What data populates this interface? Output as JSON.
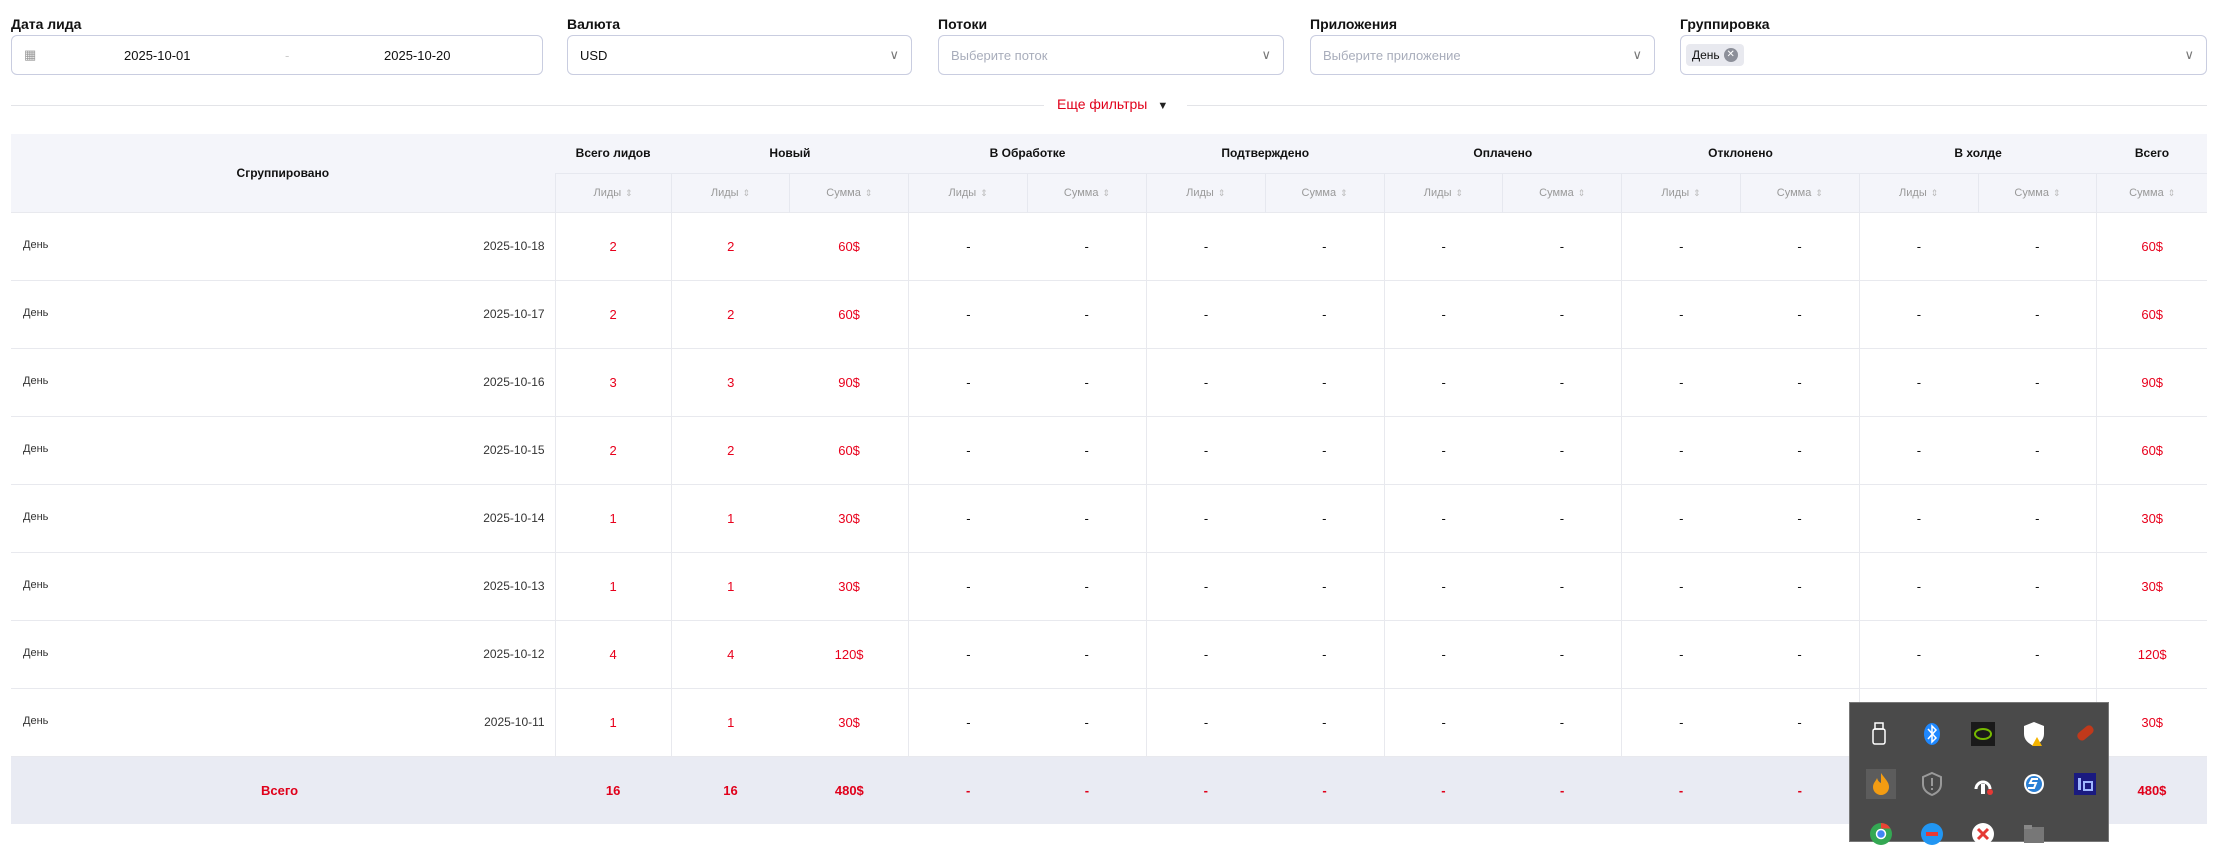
{
  "filters": {
    "date": {
      "label": "Дата лида",
      "from": "2025-10-01",
      "sep": "-",
      "to": "2025-10-20"
    },
    "currency": {
      "label": "Валюта",
      "value": "USD"
    },
    "flows": {
      "label": "Потоки",
      "placeholder": "Выберите поток"
    },
    "apps": {
      "label": "Приложения",
      "placeholder": "Выберите приложение"
    },
    "grouping": {
      "label": "Группировка",
      "chip": "День"
    },
    "more": "Еще фильтры"
  },
  "table": {
    "grouped": "Сгруппировано",
    "groups": [
      "Всего лидов",
      "Новый",
      "В Обработке",
      "Подтверждено",
      "Оплачено",
      "Отклонено",
      "В холде",
      "Всего"
    ],
    "sub_leads": "Лиды",
    "sub_sum": "Сумма",
    "rows": [
      {
        "group": "День",
        "date": "2025-10-18",
        "total": "2",
        "new_l": "2",
        "new_s": "60$",
        "total_s": "60$"
      },
      {
        "group": "День",
        "date": "2025-10-17",
        "total": "2",
        "new_l": "2",
        "new_s": "60$",
        "total_s": "60$"
      },
      {
        "group": "День",
        "date": "2025-10-16",
        "total": "3",
        "new_l": "3",
        "new_s": "90$",
        "total_s": "90$"
      },
      {
        "group": "День",
        "date": "2025-10-15",
        "total": "2",
        "new_l": "2",
        "new_s": "60$",
        "total_s": "60$"
      },
      {
        "group": "День",
        "date": "2025-10-14",
        "total": "1",
        "new_l": "1",
        "new_s": "30$",
        "total_s": "30$"
      },
      {
        "group": "День",
        "date": "2025-10-13",
        "total": "1",
        "new_l": "1",
        "new_s": "30$",
        "total_s": "30$"
      },
      {
        "group": "День",
        "date": "2025-10-12",
        "total": "4",
        "new_l": "4",
        "new_s": "120$",
        "total_s": "120$"
      },
      {
        "group": "День",
        "date": "2025-10-11",
        "total": "1",
        "new_l": "1",
        "new_s": "30$",
        "total_s": "30$"
      }
    ],
    "dash": "-",
    "footer": {
      "label": "Всего",
      "total": "16",
      "new_l": "16",
      "new_s": "480$",
      "total_s": "480$"
    }
  },
  "tray": {
    "icons": [
      "usb-icon",
      "bluetooth-icon",
      "nvidia-icon",
      "security-warning-icon",
      "usb-drive-icon",
      "app-flame-icon",
      "shield-icon",
      "vpn-icon",
      "sync-icon",
      "bu-icon",
      "chrome-icon",
      "app-icon",
      "app2-icon",
      "folder-icon"
    ]
  }
}
